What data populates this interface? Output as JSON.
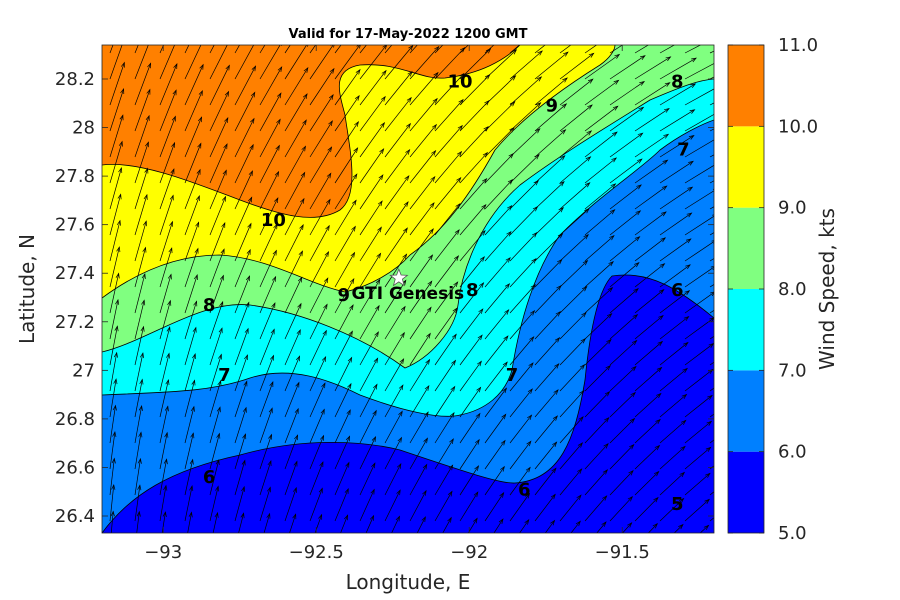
{
  "chart_data": {
    "type": "contour",
    "title": "Valid for 17-May-2022 1200 GMT",
    "xlabel": "Longitude, E",
    "ylabel": "Latitude, N",
    "xlim": [
      -93.2,
      -91.2
    ],
    "ylim": [
      26.33,
      28.34
    ],
    "xticks": [
      -93,
      -92.5,
      -92,
      -91.5
    ],
    "xtick_labels": [
      "−93",
      "−92.5",
      "−92",
      "−91.5"
    ],
    "yticks": [
      26.4,
      26.6,
      26.8,
      27,
      27.2,
      27.4,
      27.6,
      27.8,
      28,
      28.2
    ],
    "ytick_labels": [
      "26.4",
      "26.6",
      "26.8",
      "27",
      "27.2",
      "27.4",
      "27.6",
      "27.8",
      "28",
      "28.2"
    ],
    "levels": [
      5,
      6,
      7,
      8,
      9,
      10,
      11
    ],
    "level_colors": [
      "#0000ff",
      "#0080ff",
      "#00ffff",
      "#80ff80",
      "#ffff00",
      "#ff8000"
    ],
    "colorbar": {
      "label": "Wind Speed, kts",
      "tick_labels": [
        "5.0",
        "6.0",
        "7.0",
        "8.0",
        "9.0",
        "10.0",
        "11.0"
      ]
    },
    "contour_labels": [
      {
        "text": "10",
        "lon": -92.03,
        "lat": 28.19
      },
      {
        "text": "9",
        "lon": -91.73,
        "lat": 28.09
      },
      {
        "text": "8",
        "lon": -91.32,
        "lat": 28.19
      },
      {
        "text": "7",
        "lon": -91.3,
        "lat": 27.91
      },
      {
        "text": "10",
        "lon": -92.64,
        "lat": 27.62
      },
      {
        "text": "9",
        "lon": -92.41,
        "lat": 27.31
      },
      {
        "text": "8",
        "lon": -91.99,
        "lat": 27.33
      },
      {
        "text": "8",
        "lon": -92.85,
        "lat": 27.27
      },
      {
        "text": "6",
        "lon": -91.32,
        "lat": 27.33
      },
      {
        "text": "7",
        "lon": -92.8,
        "lat": 26.98
      },
      {
        "text": "7",
        "lon": -91.86,
        "lat": 26.98
      },
      {
        "text": "6",
        "lon": -92.85,
        "lat": 26.56
      },
      {
        "text": "6",
        "lon": -91.82,
        "lat": 26.51
      },
      {
        "text": "5",
        "lon": -91.32,
        "lat": 26.45
      }
    ],
    "station": {
      "label": "GTI Genesis",
      "lon": -92.23,
      "lat": 27.38
    }
  }
}
